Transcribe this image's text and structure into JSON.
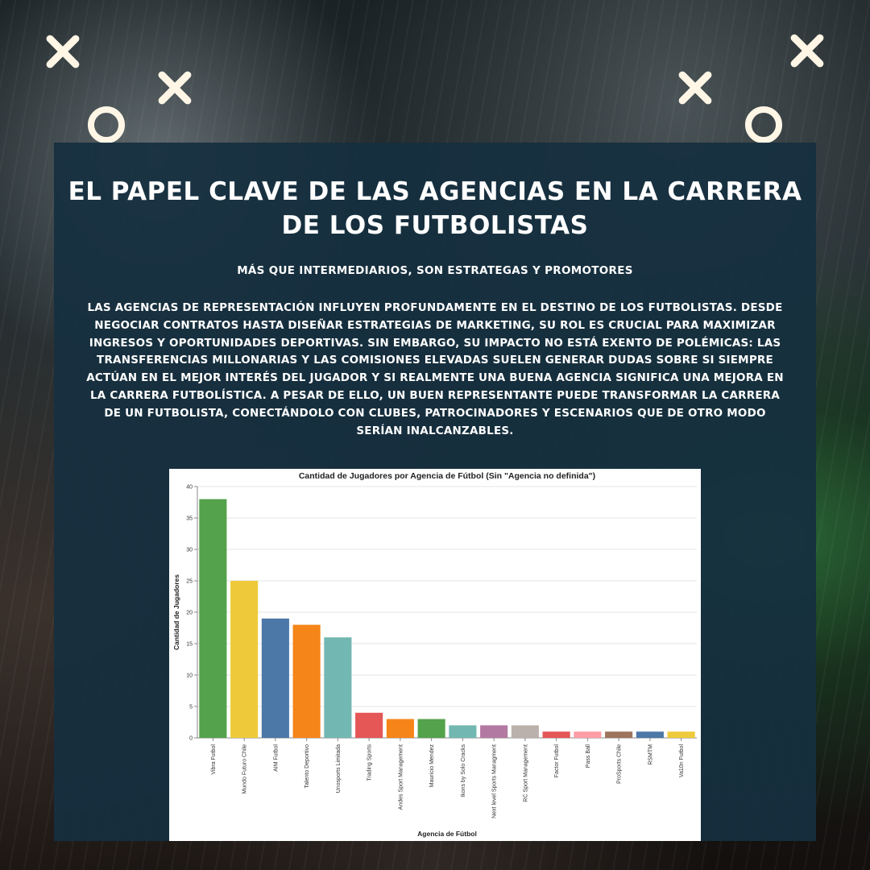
{
  "header": {
    "title_line1": "EL PAPEL CLAVE DE LAS AGENCIAS EN LA CARRERA",
    "title_line2": "DE LOS FUTBOLISTAS",
    "subtitle": "MÁS QUE INTERMEDIARIOS, SON ESTRATEGAS Y PROMOTORES"
  },
  "body": {
    "paragraph": "LAS AGENCIAS DE REPRESENTACIÓN INFLUYEN PROFUNDAMENTE EN EL DESTINO DE LOS FUTBOLISTAS. DESDE NEGOCIAR CONTRATOS HASTA DISEÑAR ESTRATEGIAS DE MARKETING, SU ROL ES CRUCIAL PARA MAXIMIZAR INGRESOS Y OPORTUNIDADES DEPORTIVAS. SIN EMBARGO, SU IMPACTO NO ESTÁ EXENTO DE POLÉMICAS: LAS TRANSFERENCIAS MILLONARIAS Y LAS COMISIONES ELEVADAS SUELEN GENERAR DUDAS SOBRE SI SIEMPRE ACTÚAN EN EL MEJOR INTERÉS DEL JUGADOR Y SI REALMENTE UNA BUENA AGENCIA SIGNIFICA UNA MEJORA EN LA CARRERA FUTBOLÍSTICA. A PESAR DE ELLO, UN BUEN REPRESENTANTE PUEDE TRANSFORMAR LA CARRERA DE UN FUTBOLISTA, CONECTÁNDOLO CON CLUBES, PATROCINADORES Y ESCENARIOS QUE DE OTRO MODO SERÍAN INALCANZABLES."
  },
  "decor": {
    "mark_color": "#fff6e6",
    "marks": [
      "x-icon",
      "x-icon",
      "o-icon",
      "x-icon",
      "x-icon",
      "o-icon"
    ]
  },
  "chart_data": {
    "type": "bar",
    "title": "Cantidad de Jugadores por Agencia de Fútbol (Sin \"Agencia no definida\")",
    "xlabel": "Agencia de Fútbol",
    "ylabel": "Cantidad de Jugadores",
    "ylim": [
      0,
      40
    ],
    "yticks": [
      0,
      5,
      10,
      15,
      20,
      25,
      30,
      35,
      40
    ],
    "grid": true,
    "categories": [
      "Vibra Futbol",
      "Mundo Futuro Chile",
      "AIM Futbol",
      "Talento Deportivo",
      "Unosports Limitada",
      "Trading Sports",
      "Andes Sport Management",
      "Mauricio Mendez",
      "Ikons by Solo Cracks",
      "Next level Sports Managment",
      "RC Sport Management",
      "Factor Futbol",
      "Pass Ball",
      "ProSports Chile",
      "RSMTM",
      "Va10n Futbol"
    ],
    "values": [
      38,
      25,
      19,
      18,
      16,
      4,
      3,
      3,
      2,
      2,
      2,
      1,
      1,
      1,
      1,
      1
    ],
    "colors": [
      "#54a24b",
      "#eeca3b",
      "#4c78a8",
      "#f58518",
      "#72b7b2",
      "#e45756",
      "#f58518",
      "#54a24b",
      "#72b7b2",
      "#b279a2",
      "#bab0ac",
      "#e45756",
      "#ff9da6",
      "#9d755d",
      "#4c78a8",
      "#eeca3b"
    ]
  }
}
